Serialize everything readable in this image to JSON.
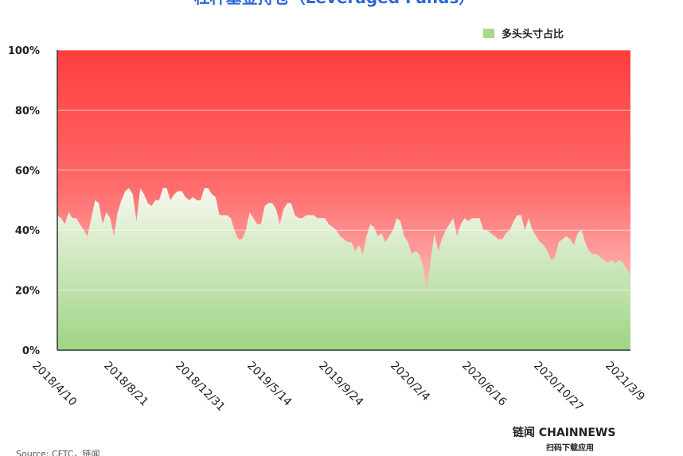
{
  "chart_data": {
    "type": "area",
    "title": "杠杆基金持仓（Leveraged Funds）",
    "categories": [
      "2018/4/10",
      null,
      null,
      null,
      null,
      null,
      null,
      null,
      null,
      null,
      null,
      null,
      null,
      null,
      null,
      null,
      null,
      null,
      null,
      "2018/8/21",
      null,
      null,
      null,
      null,
      null,
      null,
      null,
      null,
      null,
      null,
      null,
      null,
      null,
      null,
      null,
      null,
      null,
      null,
      "2018/12/31",
      null,
      null,
      null,
      null,
      null,
      null,
      null,
      null,
      null,
      null,
      null,
      null,
      null,
      null,
      null,
      null,
      null,
      null,
      "2019/5/14",
      null,
      null,
      null,
      null,
      null,
      null,
      null,
      null,
      null,
      null,
      null,
      null,
      null,
      null,
      null,
      null,
      null,
      null,
      "2019/9/24",
      null,
      null,
      null,
      null,
      null,
      null,
      null,
      null,
      null,
      null,
      null,
      null,
      null,
      null,
      null,
      null,
      null,
      null,
      "2020/2/4",
      null,
      null,
      null,
      null,
      null,
      null,
      null,
      null,
      null,
      null,
      null,
      null,
      null,
      null,
      null,
      null,
      null,
      null,
      "2020/6/16",
      null,
      null,
      null,
      null,
      null,
      null,
      null,
      null,
      null,
      null,
      null,
      null,
      null,
      null,
      null,
      null,
      null,
      null,
      "2020/10/27",
      null,
      null,
      null,
      null,
      null,
      null,
      null,
      null,
      null,
      null,
      null,
      null,
      null,
      null,
      null,
      null,
      null,
      null,
      "2021/3/9"
    ],
    "series": [
      {
        "name": "多头头寸占比",
        "color": "#a9d88c",
        "values": [
          45,
          44,
          42,
          46,
          44,
          44,
          42,
          40,
          38,
          44,
          50,
          49,
          42,
          46,
          44,
          38,
          46,
          50,
          53,
          54,
          52,
          43,
          54,
          52,
          49,
          48,
          50,
          50,
          54,
          54,
          50,
          52,
          53,
          53,
          51,
          50,
          51,
          50,
          50,
          54,
          54,
          52,
          51,
          45,
          45,
          45,
          44,
          40,
          37,
          37,
          40,
          46,
          44,
          42,
          42,
          48,
          49,
          49,
          47,
          42,
          47,
          49,
          49,
          45,
          44,
          44,
          45,
          45,
          45,
          44,
          44,
          44,
          42,
          41,
          40,
          38,
          37,
          36,
          36,
          33,
          35,
          32,
          38,
          42,
          41,
          38,
          39,
          36,
          38,
          40,
          44,
          43,
          38,
          36,
          32,
          33,
          32,
          28,
          20,
          30,
          39,
          33,
          37,
          40,
          42,
          44,
          38,
          42,
          44,
          43,
          44,
          44,
          44,
          40,
          40,
          39,
          38,
          37,
          37,
          39,
          40,
          43,
          45,
          45,
          40,
          44,
          40,
          38,
          36,
          35,
          33,
          30,
          31,
          36,
          37,
          38,
          37,
          35,
          39,
          40,
          36,
          33,
          32,
          32,
          31,
          30,
          29,
          30,
          29,
          30,
          29,
          27,
          25
        ]
      }
    ],
    "ylim": [
      0,
      100
    ],
    "yticks": [
      {
        "value": 0,
        "label": "0%"
      },
      {
        "value": 20,
        "label": "20%"
      },
      {
        "value": 40,
        "label": "40%"
      },
      {
        "value": 60,
        "label": "60%"
      },
      {
        "value": 80,
        "label": "80%"
      },
      {
        "value": 100,
        "label": "100%"
      }
    ],
    "grid": true,
    "legend": "top-right",
    "brand": "链闻 CHAINNEWS",
    "brand_sub": "扫码下载应用",
    "source": "Source: CFTC，链闻"
  }
}
